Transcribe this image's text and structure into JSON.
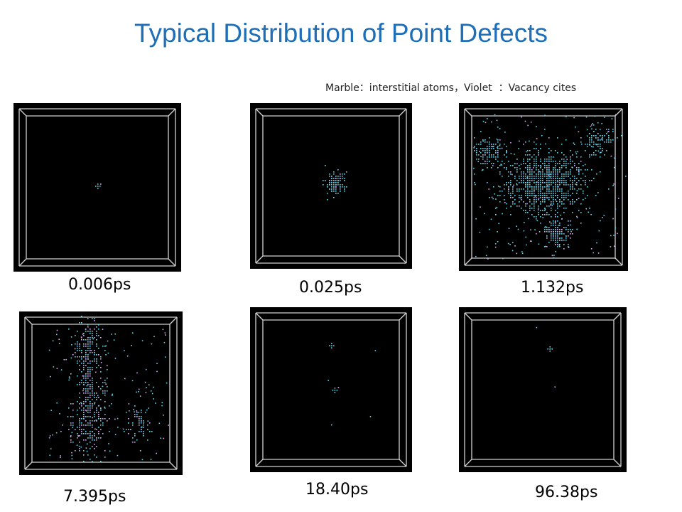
{
  "slide": {
    "title": "Typical Distribution of Point Defects",
    "legend": "Marble：interstitial atoms，Violet  ：Vacancy cites"
  },
  "colors": {
    "title": "#1F6FB8",
    "interstitial": "#5fd6e8",
    "vacancy": "#d9a8f0",
    "box": "#d0d0d0"
  },
  "panels": [
    {
      "caption": "0.006ps",
      "pattern": "tiny-cross"
    },
    {
      "caption": "0.025ps",
      "pattern": "small-cluster"
    },
    {
      "caption": "1.132ps",
      "pattern": "large-cascade"
    },
    {
      "caption": "7.395ps",
      "pattern": "vertical-cascade"
    },
    {
      "caption": "18.40ps",
      "pattern": "few-defects"
    },
    {
      "caption": "96.38ps",
      "pattern": "single-defect"
    }
  ]
}
